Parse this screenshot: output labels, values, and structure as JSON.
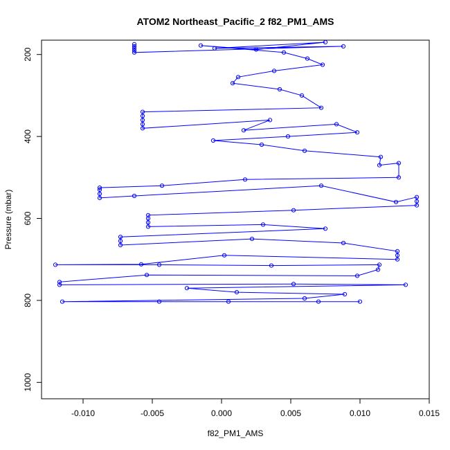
{
  "chart_data": {
    "type": "scatter",
    "title": "ATOM2 Northeast_Pacific_2 f82_PM1_AMS",
    "xlabel": "f82_PM1_AMS",
    "ylabel": "Pressure (mbar)",
    "xlim": [
      -0.013,
      0.015
    ],
    "ylim": [
      1040,
      165
    ],
    "y_inverted": true,
    "x_ticks": [
      -0.01,
      -0.005,
      0.0,
      0.005,
      0.01,
      0.015
    ],
    "x_tick_labels": [
      "-0.010",
      "-0.005",
      "0.000",
      "0.005",
      "0.010",
      "0.015"
    ],
    "y_ticks": [
      200,
      400,
      600,
      800,
      1000
    ],
    "y_tick_labels": [
      "200",
      "400",
      "600",
      "800",
      "1000"
    ],
    "grid": false,
    "legend": "none",
    "marker": "open-circle",
    "connect_points": true,
    "color": "#0000ff",
    "series": [
      {
        "points": [
          [
            -0.0063,
            175
          ],
          [
            -0.0063,
            180
          ],
          [
            -0.0063,
            185
          ],
          [
            -0.0063,
            190
          ],
          [
            -0.0063,
            195
          ],
          [
            0.0088,
            180
          ],
          [
            -0.0005,
            185
          ],
          [
            0.0075,
            170
          ],
          [
            0.0025,
            188
          ],
          [
            -0.0015,
            178
          ],
          [
            0.0045,
            195
          ],
          [
            0.0062,
            210
          ],
          [
            0.0073,
            225
          ],
          [
            0.0038,
            240
          ],
          [
            0.0012,
            255
          ],
          [
            0.0008,
            270
          ],
          [
            0.0042,
            285
          ],
          [
            0.0058,
            300
          ],
          [
            0.0072,
            330
          ],
          [
            -0.0057,
            340
          ],
          [
            -0.0057,
            350
          ],
          [
            -0.0057,
            360
          ],
          [
            -0.0057,
            370
          ],
          [
            -0.0057,
            380
          ],
          [
            0.0035,
            360
          ],
          [
            0.0016,
            385
          ],
          [
            0.0083,
            370
          ],
          [
            0.0098,
            390
          ],
          [
            0.0048,
            400
          ],
          [
            -0.0006,
            410
          ],
          [
            0.0029,
            420
          ],
          [
            0.006,
            435
          ],
          [
            0.0115,
            450
          ],
          [
            0.0114,
            470
          ],
          [
            0.0128,
            465
          ],
          [
            0.0128,
            500
          ],
          [
            0.0017,
            505
          ],
          [
            -0.0043,
            520
          ],
          [
            -0.0088,
            525
          ],
          [
            -0.0088,
            530
          ],
          [
            -0.0088,
            540
          ],
          [
            -0.0088,
            550
          ],
          [
            -0.0063,
            545
          ],
          [
            0.0072,
            520
          ],
          [
            0.0126,
            560
          ],
          [
            0.0141,
            548
          ],
          [
            0.0141,
            558
          ],
          [
            0.0141,
            568
          ],
          [
            0.0052,
            580
          ],
          [
            -0.0053,
            592
          ],
          [
            -0.0053,
            600
          ],
          [
            -0.0053,
            610
          ],
          [
            -0.0053,
            620
          ],
          [
            0.003,
            615
          ],
          [
            0.0075,
            625
          ],
          [
            -0.0073,
            645
          ],
          [
            -0.0073,
            655
          ],
          [
            -0.0073,
            665
          ],
          [
            0.0022,
            650
          ],
          [
            0.0088,
            660
          ],
          [
            0.0127,
            680
          ],
          [
            0.0127,
            690
          ],
          [
            0.0127,
            700
          ],
          [
            0.0002,
            690
          ],
          [
            -0.0058,
            712
          ],
          [
            -0.012,
            713
          ],
          [
            -0.0045,
            713
          ],
          [
            0.0036,
            715
          ],
          [
            0.0114,
            713
          ],
          [
            0.0113,
            725
          ],
          [
            0.0098,
            740
          ],
          [
            -0.0054,
            738
          ],
          [
            -0.0117,
            755
          ],
          [
            -0.0117,
            762
          ],
          [
            0.0052,
            760
          ],
          [
            0.0133,
            762
          ],
          [
            -0.0025,
            770
          ],
          [
            0.0011,
            780
          ],
          [
            0.0089,
            785
          ],
          [
            0.006,
            795
          ],
          [
            -0.0115,
            803
          ],
          [
            0.01,
            803
          ],
          [
            -0.0045,
            803
          ],
          [
            0.0005,
            803
          ],
          [
            0.007,
            803
          ]
        ]
      }
    ]
  }
}
